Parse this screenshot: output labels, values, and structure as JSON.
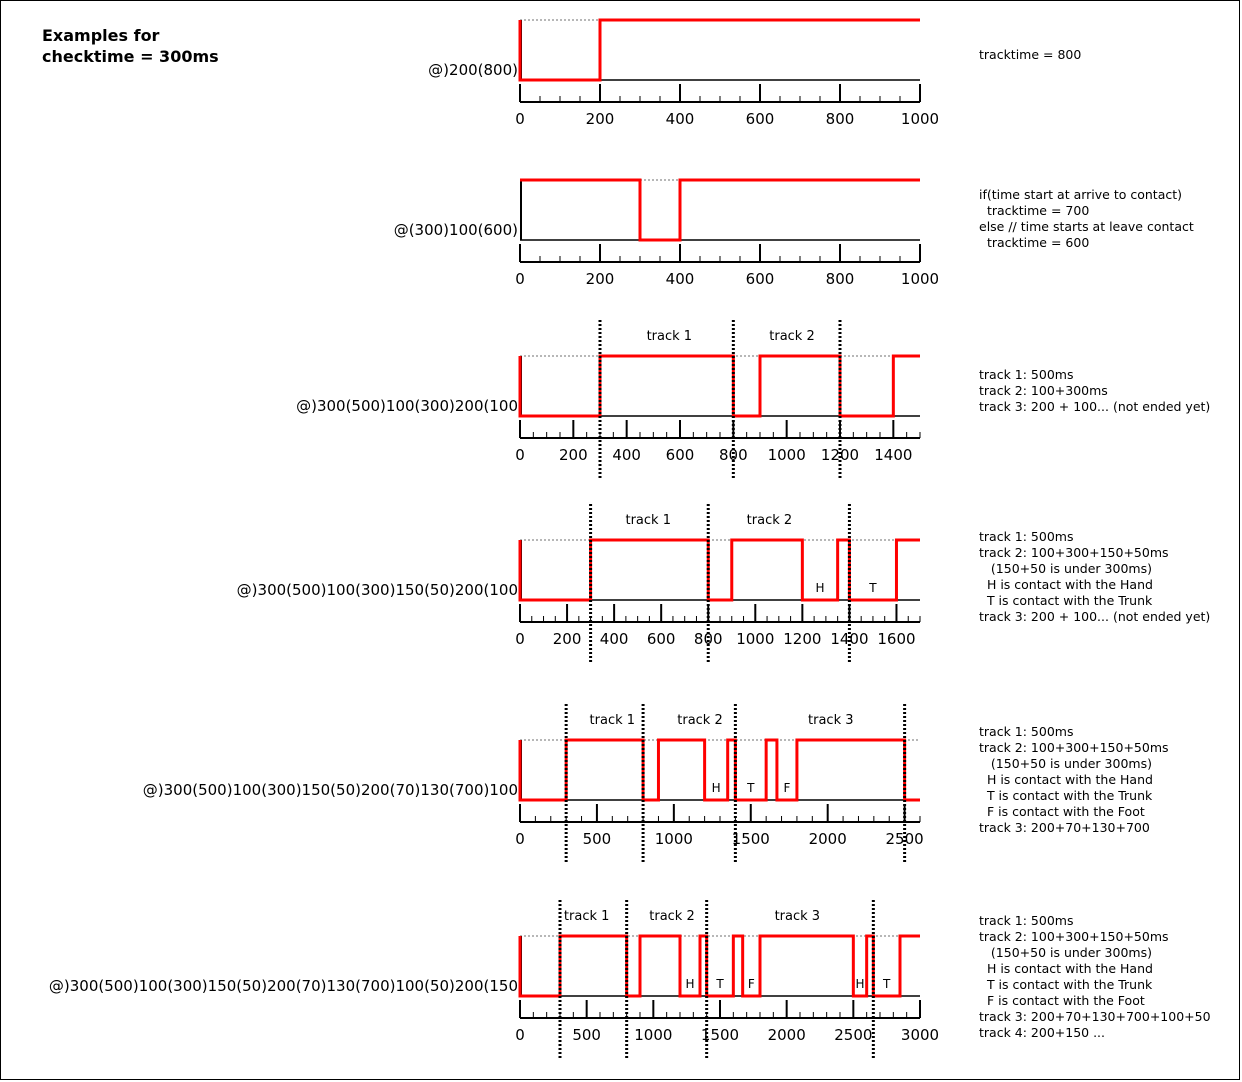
{
  "title": "Examples for\nchecktime = 300ms",
  "colors": {
    "signal": "#ff0000",
    "axis": "#000000",
    "high_guide": "#8c8c8c",
    "divider": "#000000"
  },
  "examples": [
    {
      "label": "@)200(800)",
      "xmax": 1000,
      "major_ticks": [
        0,
        200,
        400,
        600,
        800,
        1000
      ],
      "minor_step": 50,
      "segments": [
        [
          0,
          "high"
        ],
        [
          0,
          "low"
        ],
        [
          200,
          "high"
        ],
        [
          1000,
          "high"
        ]
      ],
      "dividers": [],
      "tracks": [],
      "contacts": [],
      "notes": [
        "tracktime = 800"
      ]
    },
    {
      "label": "@(300)100(600)",
      "xmax": 1000,
      "major_ticks": [
        0,
        200,
        400,
        600,
        800,
        1000
      ],
      "minor_step": 50,
      "segments": [
        [
          0,
          "high"
        ],
        [
          300,
          "low"
        ],
        [
          400,
          "high"
        ],
        [
          1000,
          "high"
        ]
      ],
      "dividers": [],
      "tracks": [],
      "contacts": [],
      "notes": [
        "if(time start at arrive to contact)",
        "  tracktime = 700",
        "else // time starts at leave contact",
        "  tracktime = 600"
      ]
    },
    {
      "label": "@)300(500)100(300)200(100",
      "xmax": 1500,
      "major_ticks": [
        0,
        200,
        400,
        600,
        800,
        1000,
        1200,
        1400
      ],
      "minor_step": 50,
      "segments": [
        [
          0,
          "high"
        ],
        [
          0,
          "low"
        ],
        [
          300,
          "high"
        ],
        [
          800,
          "low"
        ],
        [
          900,
          "high"
        ],
        [
          1200,
          "low"
        ],
        [
          1400,
          "high"
        ],
        [
          1500,
          "high"
        ]
      ],
      "dividers": [
        300,
        800,
        1200
      ],
      "tracks": [
        {
          "text": "track 1",
          "x": 560
        },
        {
          "text": "track 2",
          "x": 1020
        }
      ],
      "contacts": [],
      "notes": [
        "track 1: 500ms",
        "track 2: 100+300ms",
        "track 3: 200 + 100... (not ended yet)"
      ]
    },
    {
      "label": "@)300(500)100(300)150(50)200(100",
      "xmax": 1700,
      "major_ticks": [
        0,
        200,
        400,
        600,
        800,
        1000,
        1200,
        1400,
        1600
      ],
      "minor_step": 50,
      "segments": [
        [
          0,
          "high"
        ],
        [
          0,
          "low"
        ],
        [
          300,
          "high"
        ],
        [
          800,
          "low"
        ],
        [
          900,
          "high"
        ],
        [
          1200,
          "low"
        ],
        [
          1350,
          "high"
        ],
        [
          1400,
          "low"
        ],
        [
          1600,
          "high"
        ],
        [
          1700,
          "high"
        ]
      ],
      "dividers": [
        300,
        800,
        1400
      ],
      "tracks": [
        {
          "text": "track 1",
          "x": 545
        },
        {
          "text": "track 2",
          "x": 1060
        }
      ],
      "contacts": [
        {
          "text": "H",
          "x": 1275
        },
        {
          "text": "T",
          "x": 1500
        }
      ],
      "notes": [
        "track 1: 500ms",
        "track 2: 100+300+150+50ms",
        "   (150+50 is under 300ms)",
        "  H is contact with the Hand",
        "  T is contact with the Trunk",
        "track 3: 200 + 100... (not ended yet)"
      ]
    },
    {
      "label": "@)300(500)100(300)150(50)200(70)130(700)100",
      "xmax": 2600,
      "major_ticks": [
        0,
        500,
        1000,
        1500,
        2000,
        2500
      ],
      "minor_step": 100,
      "segments": [
        [
          0,
          "high"
        ],
        [
          0,
          "low"
        ],
        [
          300,
          "high"
        ],
        [
          800,
          "low"
        ],
        [
          900,
          "high"
        ],
        [
          1200,
          "low"
        ],
        [
          1350,
          "high"
        ],
        [
          1400,
          "low"
        ],
        [
          1600,
          "high"
        ],
        [
          1670,
          "low"
        ],
        [
          1800,
          "high"
        ],
        [
          2500,
          "low"
        ],
        [
          2600,
          "low"
        ]
      ],
      "dividers": [
        300,
        800,
        1400,
        2500
      ],
      "tracks": [
        {
          "text": "track 1",
          "x": 600
        },
        {
          "text": "track 2",
          "x": 1170
        },
        {
          "text": "track 3",
          "x": 2020
        }
      ],
      "contacts": [
        {
          "text": "H",
          "x": 1275
        },
        {
          "text": "T",
          "x": 1500
        },
        {
          "text": "F",
          "x": 1735
        }
      ],
      "notes": [
        "track 1: 500ms",
        "track 2: 100+300+150+50ms",
        "   (150+50 is under 300ms)",
        "  H is contact with the Hand",
        "  T is contact with the Trunk",
        "  F is contact with the Foot",
        "track 3: 200+70+130+700"
      ]
    },
    {
      "label": "@)300(500)100(300)150(50)200(70)130(700)100(50)200(150",
      "xmax": 3000,
      "major_ticks": [
        0,
        500,
        1000,
        1500,
        2000,
        2500,
        3000
      ],
      "minor_step": 100,
      "segments": [
        [
          0,
          "high"
        ],
        [
          0,
          "low"
        ],
        [
          300,
          "high"
        ],
        [
          800,
          "low"
        ],
        [
          900,
          "high"
        ],
        [
          1200,
          "low"
        ],
        [
          1350,
          "high"
        ],
        [
          1400,
          "low"
        ],
        [
          1600,
          "high"
        ],
        [
          1670,
          "low"
        ],
        [
          1800,
          "high"
        ],
        [
          2500,
          "low"
        ],
        [
          2600,
          "high"
        ],
        [
          2650,
          "low"
        ],
        [
          2850,
          "high"
        ],
        [
          3000,
          "high"
        ]
      ],
      "dividers": [
        300,
        800,
        1400,
        2650
      ],
      "tracks": [
        {
          "text": "track 1",
          "x": 500
        },
        {
          "text": "track 2",
          "x": 1140
        },
        {
          "text": "track 3",
          "x": 2080
        }
      ],
      "contacts": [
        {
          "text": "H",
          "x": 1275
        },
        {
          "text": "T",
          "x": 1500
        },
        {
          "text": "F",
          "x": 1735
        },
        {
          "text": "H",
          "x": 2550
        },
        {
          "text": "T",
          "x": 2750
        }
      ],
      "notes": [
        "track 1: 500ms",
        "track 2: 100+300+150+50ms",
        "   (150+50 is under 300ms)",
        "  H is contact with the Hand",
        "  T is contact with the Trunk",
        "  F is contact with the Foot",
        "track 3: 200+70+130+700+100+50",
        "track 4: 200+150 ..."
      ]
    }
  ]
}
